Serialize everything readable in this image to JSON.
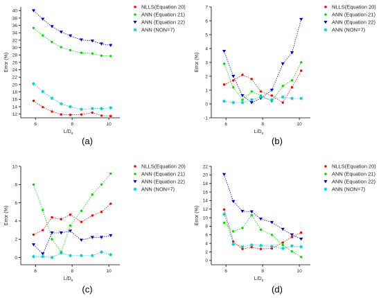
{
  "chart_data": [
    {
      "type": "scatter",
      "panel_label": "(a)",
      "xlabel": "L/D",
      "xlabel_sub": "s",
      "ylabel": "Error (%)",
      "x": [
        5.9,
        6.4,
        6.9,
        7.4,
        7.9,
        8.5,
        9.1,
        9.6,
        10.1
      ],
      "xticks": [
        6,
        8,
        10
      ],
      "xlim": [
        5.2,
        10.6
      ],
      "ylim": [
        11,
        41
      ],
      "yticks": [
        12,
        14,
        16,
        18,
        20,
        22,
        24,
        26,
        28,
        30,
        32,
        34,
        36,
        38,
        40
      ],
      "series": [
        {
          "name": "NLLS(Equation 20)",
          "color": "#ff0000",
          "marker": "circle",
          "values": [
            15.6,
            13.9,
            12.7,
            11.9,
            11.8,
            11.9,
            12.4,
            11.6,
            11.5
          ]
        },
        {
          "name": "ANN (Equation 21)",
          "color": "#00dd00",
          "marker": "circle",
          "values": [
            35.3,
            33.3,
            31.5,
            30.1,
            29.3,
            28.6,
            28.4,
            27.8,
            27.7
          ]
        },
        {
          "name": "ANN (Equation 22)",
          "color": "#0000cc",
          "marker": "triangle-down",
          "values": [
            40.0,
            37.7,
            35.7,
            34.2,
            33.2,
            32.1,
            31.8,
            31.0,
            30.6
          ]
        },
        {
          "name": "ANN (NON=7)",
          "color": "#00cccc",
          "marker": "star",
          "values": [
            20.2,
            18.1,
            16.3,
            14.8,
            14.0,
            13.3,
            13.5,
            13.5,
            13.7
          ]
        }
      ]
    },
    {
      "type": "scatter",
      "panel_label": "(b)",
      "xlabel": "L/D",
      "xlabel_sub": "s",
      "ylabel": "Error (%)",
      "x": [
        5.9,
        6.4,
        6.9,
        7.4,
        7.9,
        8.5,
        9.1,
        9.6,
        10.1
      ],
      "xticks": [
        6,
        8,
        10
      ],
      "xlim": [
        5.2,
        10.6
      ],
      "ylim": [
        -1,
        7
      ],
      "yticks": [
        -1,
        0,
        1,
        2,
        3,
        4,
        5,
        6,
        7
      ],
      "series": [
        {
          "name": "NLLS(Equation 20)",
          "color": "#ff0000",
          "marker": "circle",
          "values": [
            1.4,
            1.7,
            2.1,
            1.8,
            0.9,
            0.6,
            0.1,
            1.2,
            2.4
          ]
        },
        {
          "name": "ANN (Equation 21)",
          "color": "#00dd00",
          "marker": "circle",
          "values": [
            2.9,
            1.2,
            0.3,
            0.9,
            0.6,
            0.2,
            1.3,
            1.7,
            3.0
          ]
        },
        {
          "name": "ANN (Equation 22)",
          "color": "#0000cc",
          "marker": "triangle-down",
          "values": [
            3.8,
            2.0,
            0.6,
            0.1,
            0.4,
            1.0,
            2.9,
            3.7,
            6.1
          ]
        },
        {
          "name": "ANN (NON=7)",
          "color": "#00cccc",
          "marker": "star",
          "values": [
            0.2,
            0.1,
            0.1,
            0.3,
            0.5,
            0.3,
            0.5,
            0.4,
            0.4
          ]
        }
      ]
    },
    {
      "type": "scatter",
      "panel_label": "(c)",
      "xlabel": "L/D",
      "xlabel_sub": "s",
      "ylabel": "Error (%)",
      "x": [
        5.9,
        6.4,
        6.9,
        7.4,
        7.9,
        8.5,
        9.1,
        9.6,
        10.1
      ],
      "xticks": [
        6,
        8,
        10
      ],
      "xlim": [
        5.2,
        10.6
      ],
      "ylim": [
        -0.8,
        10
      ],
      "yticks": [
        0,
        2,
        4,
        6,
        8,
        10
      ],
      "series": [
        {
          "name": "NLLS(Equation 20)",
          "color": "#ff0000",
          "marker": "circle",
          "values": [
            2.5,
            3.0,
            4.4,
            4.2,
            4.7,
            3.9,
            4.6,
            5.0,
            5.9
          ]
        },
        {
          "name": "ANN (Equation 21)",
          "color": "#00dd00",
          "marker": "circle",
          "values": [
            8.0,
            5.2,
            2.0,
            0.6,
            3.5,
            5.1,
            6.9,
            8.0,
            9.2
          ]
        },
        {
          "name": "ANN (Equation 22)",
          "color": "#0000cc",
          "marker": "triangle-down",
          "values": [
            1.4,
            0.4,
            2.7,
            2.7,
            2.9,
            1.9,
            2.2,
            2.2,
            2.4
          ]
        },
        {
          "name": "ANN (NON=7)",
          "color": "#00cccc",
          "marker": "star",
          "values": [
            0.1,
            0.1,
            0.0,
            0.5,
            0.2,
            0.2,
            0.2,
            0.6,
            0.3
          ]
        }
      ]
    },
    {
      "type": "scatter",
      "panel_label": "(d)",
      "xlabel": "L/D",
      "xlabel_sub": "s",
      "ylabel": "Error (%)",
      "x": [
        5.9,
        6.4,
        6.9,
        7.4,
        7.9,
        8.5,
        9.1,
        9.6,
        10.1
      ],
      "xticks": [
        6,
        8,
        10
      ],
      "xlim": [
        5.2,
        10.6
      ],
      "ylim": [
        -1,
        22
      ],
      "yticks": [
        0,
        2,
        4,
        6,
        8,
        10,
        12,
        14,
        16,
        18,
        20,
        22
      ],
      "series": [
        {
          "name": "NLLS(Equation 20)",
          "color": "#ff0000",
          "marker": "circle",
          "values": [
            11.9,
            4.4,
            2.7,
            3.1,
            2.7,
            2.8,
            4.2,
            5.5,
            6.5
          ]
        },
        {
          "name": "ANN (Equation 21)",
          "color": "#00dd00",
          "marker": "circle",
          "values": [
            8.8,
            6.8,
            7.6,
            10.6,
            7.2,
            6.0,
            3.6,
            2.1,
            0.8
          ]
        },
        {
          "name": "ANN (Equation 22)",
          "color": "#0000cc",
          "marker": "triangle-down",
          "values": [
            20.1,
            13.8,
            11.5,
            11.4,
            9.7,
            8.9,
            7.3,
            6.0,
            5.0
          ]
        },
        {
          "name": "ANN (NON=7)",
          "color": "#00cccc",
          "marker": "star",
          "values": [
            10.8,
            3.8,
            3.2,
            3.6,
            3.5,
            3.3,
            2.8,
            3.4,
            3.2
          ]
        }
      ]
    }
  ]
}
